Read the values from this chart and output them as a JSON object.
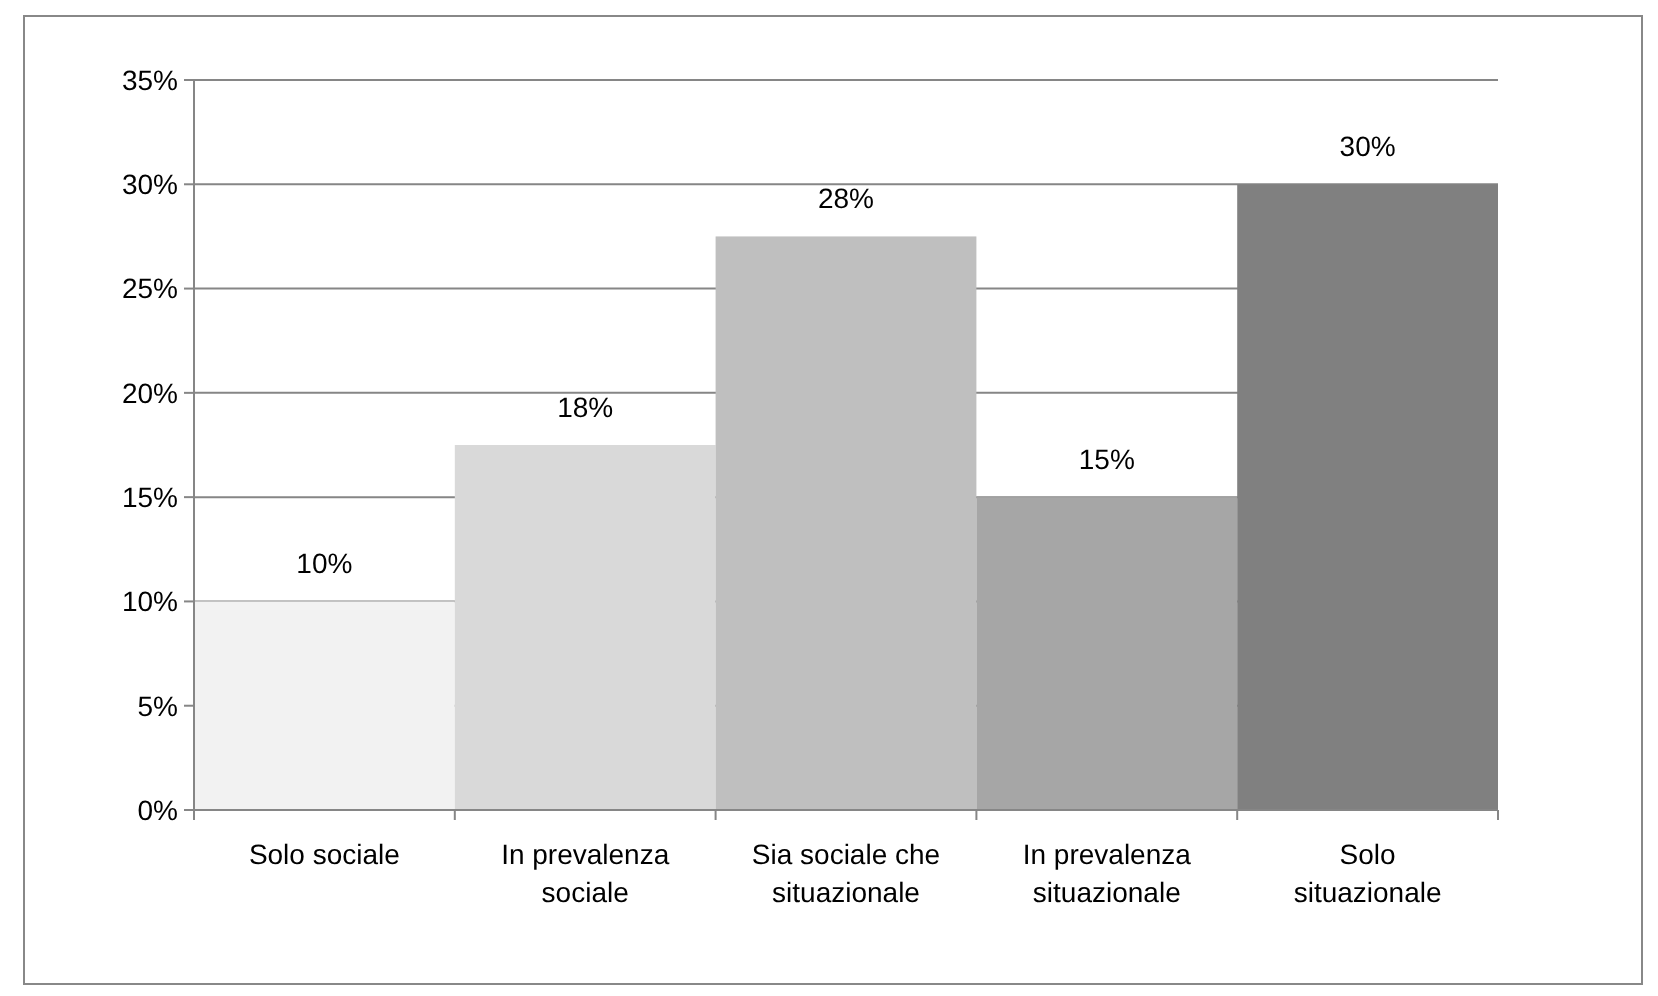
{
  "chart_data": {
    "type": "bar",
    "categories": [
      "Solo sociale",
      "In prevalenza sociale",
      "Sia sociale che situazionale",
      "In prevalenza situazionale",
      "Solo situazionale"
    ],
    "values": [
      10,
      17.5,
      27.5,
      15,
      30
    ],
    "value_labels": [
      "10%",
      "18%",
      "28%",
      "15%",
      "30%"
    ],
    "colors": [
      "#f2f2f2",
      "#d9d9d9",
      "#bfbfbf",
      "#a6a6a6",
      "#808080"
    ],
    "ylim": [
      0,
      35
    ],
    "yticks": [
      {
        "value": 0,
        "label": "0%"
      },
      {
        "value": 5,
        "label": "5%"
      },
      {
        "value": 10,
        "label": "10%"
      },
      {
        "value": 15,
        "label": "15%"
      },
      {
        "value": 20,
        "label": "20%"
      },
      {
        "value": 25,
        "label": "25%"
      },
      {
        "value": 30,
        "label": "30%"
      },
      {
        "value": 35,
        "label": "35%"
      }
    ],
    "grid": "y"
  }
}
